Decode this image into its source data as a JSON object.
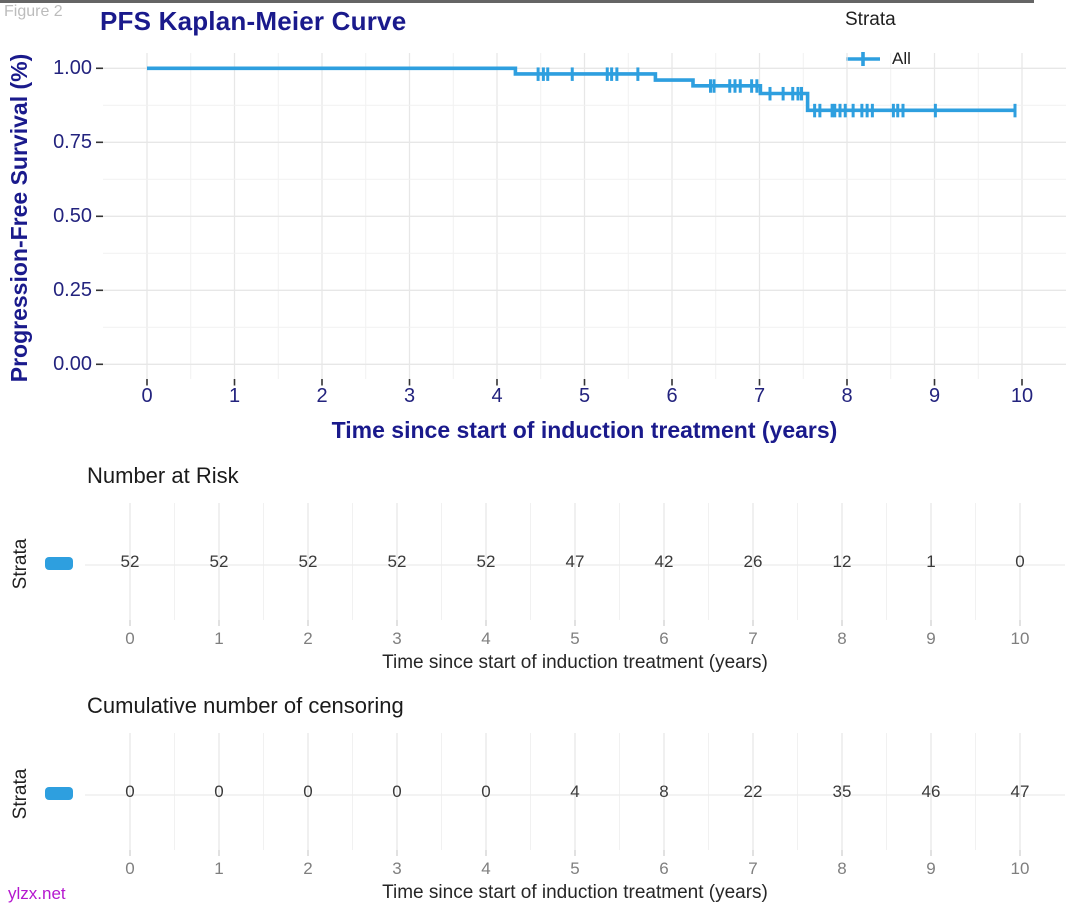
{
  "watermarks": {
    "figure_label": "Figure 2",
    "site": "ylzx.net"
  },
  "accent_color": "#2E9FDF",
  "title_color": "#1a1a8c",
  "chart_data": [
    {
      "type": "line",
      "subtype": "kaplan-meier-step",
      "title": "PFS Kaplan-Meier Curve",
      "xlabel": "Time since start of induction treatment (years)",
      "ylabel": "Progression-Free Survival (%)",
      "xlim": [
        0,
        10
      ],
      "ylim": [
        0,
        1
      ],
      "x_ticks": [
        0,
        1,
        2,
        3,
        4,
        5,
        6,
        7,
        8,
        9,
        10
      ],
      "y_ticks": [
        {
          "label": "1.00",
          "value": 1.0
        },
        {
          "label": "0.75",
          "value": 0.75
        },
        {
          "label": "0.50",
          "value": 0.5
        },
        {
          "label": "0.25",
          "value": 0.25
        },
        {
          "label": "0.00",
          "value": 0.0
        }
      ],
      "grid": true,
      "legend": {
        "title": "Strata",
        "position": "top-right"
      },
      "series": [
        {
          "name": "All",
          "color": "#2E9FDF",
          "steps": [
            [
              0,
              1.0
            ],
            [
              4.21,
              1.0
            ],
            [
              4.21,
              0.981
            ],
            [
              5.81,
              0.981
            ],
            [
              5.81,
              0.96
            ],
            [
              6.24,
              0.96
            ],
            [
              6.24,
              0.941
            ],
            [
              7.01,
              0.941
            ],
            [
              7.01,
              0.915
            ],
            [
              7.55,
              0.915
            ],
            [
              7.55,
              0.858
            ],
            [
              9.92,
              0.858
            ]
          ],
          "censor_marks": [
            [
              4.47,
              0.981
            ],
            [
              4.53,
              0.981
            ],
            [
              4.58,
              0.981
            ],
            [
              4.86,
              0.981
            ],
            [
              5.26,
              0.981
            ],
            [
              5.31,
              0.981
            ],
            [
              5.37,
              0.981
            ],
            [
              5.61,
              0.981
            ],
            [
              6.44,
              0.941
            ],
            [
              6.48,
              0.941
            ],
            [
              6.66,
              0.941
            ],
            [
              6.72,
              0.941
            ],
            [
              6.78,
              0.941
            ],
            [
              6.91,
              0.941
            ],
            [
              6.97,
              0.941
            ],
            [
              7.12,
              0.915
            ],
            [
              7.27,
              0.915
            ],
            [
              7.38,
              0.915
            ],
            [
              7.44,
              0.915
            ],
            [
              7.48,
              0.915
            ],
            [
              7.63,
              0.858
            ],
            [
              7.69,
              0.858
            ],
            [
              7.83,
              0.858
            ],
            [
              7.86,
              0.858
            ],
            [
              7.92,
              0.858
            ],
            [
              7.98,
              0.858
            ],
            [
              8.07,
              0.858
            ],
            [
              8.17,
              0.858
            ],
            [
              8.23,
              0.858
            ],
            [
              8.29,
              0.858
            ],
            [
              8.53,
              0.858
            ],
            [
              8.58,
              0.858
            ],
            [
              8.64,
              0.858
            ],
            [
              9.01,
              0.858
            ],
            [
              9.92,
              0.858
            ]
          ]
        }
      ]
    },
    {
      "type": "table",
      "title": "Number at Risk",
      "row_label": "Strata",
      "xlabel": "Time since start of induction treatment (years)",
      "x": [
        0,
        1,
        2,
        3,
        4,
        5,
        6,
        7,
        8,
        9,
        10
      ],
      "values": [
        52,
        52,
        52,
        52,
        52,
        47,
        42,
        26,
        12,
        1,
        0
      ]
    },
    {
      "type": "table",
      "title": "Cumulative number of censoring",
      "row_label": "Strata",
      "xlabel": "Time since start of induction treatment (years)",
      "x": [
        0,
        1,
        2,
        3,
        4,
        5,
        6,
        7,
        8,
        9,
        10
      ],
      "values": [
        0,
        0,
        0,
        0,
        0,
        4,
        8,
        22,
        35,
        46,
        47
      ]
    }
  ]
}
